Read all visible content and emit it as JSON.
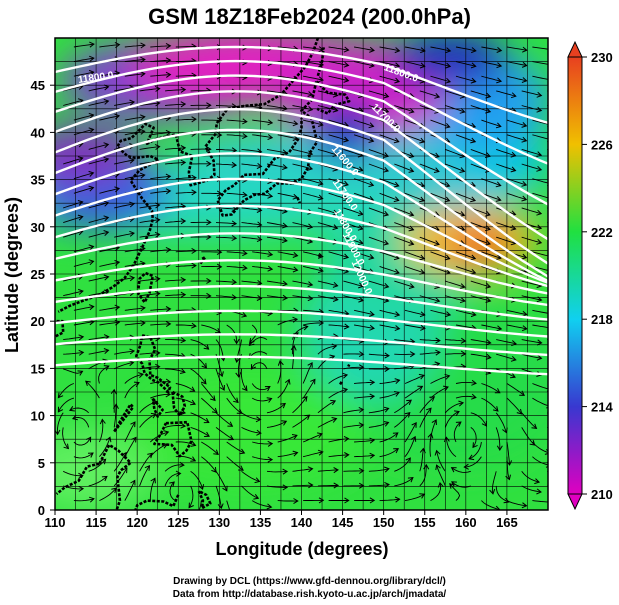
{
  "title": "GSM 18Z18Feb2024 (200.0hPa)",
  "axes": {
    "xlabel": "Longitude (degrees)",
    "ylabel": "Latitude  (degrees)",
    "xlim": [
      110,
      170
    ],
    "ylim": [
      0,
      50
    ],
    "xticks": [
      "110",
      "115",
      "120",
      "125",
      "130",
      "135",
      "140",
      "145",
      "150",
      "155",
      "160",
      "165"
    ],
    "yticks": [
      "0",
      "5",
      "10",
      "15",
      "20",
      "25",
      "30",
      "35",
      "40",
      "45"
    ]
  },
  "colorbar": {
    "ticks": [
      "210",
      "214",
      "218",
      "222",
      "226",
      "230"
    ],
    "range": [
      210,
      230
    ],
    "colors": [
      "#e000c0",
      "#3838d0",
      "#10d0f0",
      "#20e040",
      "#f0c000",
      "#e84020"
    ]
  },
  "contour_labels": [
    "11800.0",
    "11800.0",
    "11700.0",
    "11600.0",
    "11700.0",
    "11800.0",
    "11900.0",
    "12000.0"
  ],
  "credits": {
    "line1": "Drawing by DCL (https://www.gfd-dennou.org/library/dcl/)",
    "line2": "Data from http://database.rish.kyoto-u.ac.jp/arch/jmadata/"
  },
  "chart_data": {
    "type": "heatmap",
    "title": "GSM 18Z18Feb2024 (200.0hPa)",
    "xlabel": "Longitude (degrees)",
    "ylabel": "Latitude  (degrees)",
    "xlim": [
      110,
      170
    ],
    "ylim": [
      0,
      50
    ],
    "grid": true,
    "colorbar_range": [
      210,
      230
    ],
    "contour_labels": [
      11600,
      11700,
      11800,
      11900,
      12000
    ],
    "field_samples": [
      {
        "lon": 130,
        "lat": 46,
        "value": 211
      },
      {
        "lon": 147,
        "lat": 44,
        "value": 212
      },
      {
        "lon": 152,
        "lat": 47,
        "value": 213
      },
      {
        "lon": 115,
        "lat": 38,
        "value": 214
      },
      {
        "lon": 160,
        "lat": 31,
        "value": 227
      },
      {
        "lon": 157,
        "lat": 38,
        "value": 219
      },
      {
        "lon": 145,
        "lat": 22,
        "value": 218
      },
      {
        "lon": 120,
        "lat": 8,
        "value": 222
      },
      {
        "lon": 165,
        "lat": 20,
        "value": 222
      }
    ]
  }
}
